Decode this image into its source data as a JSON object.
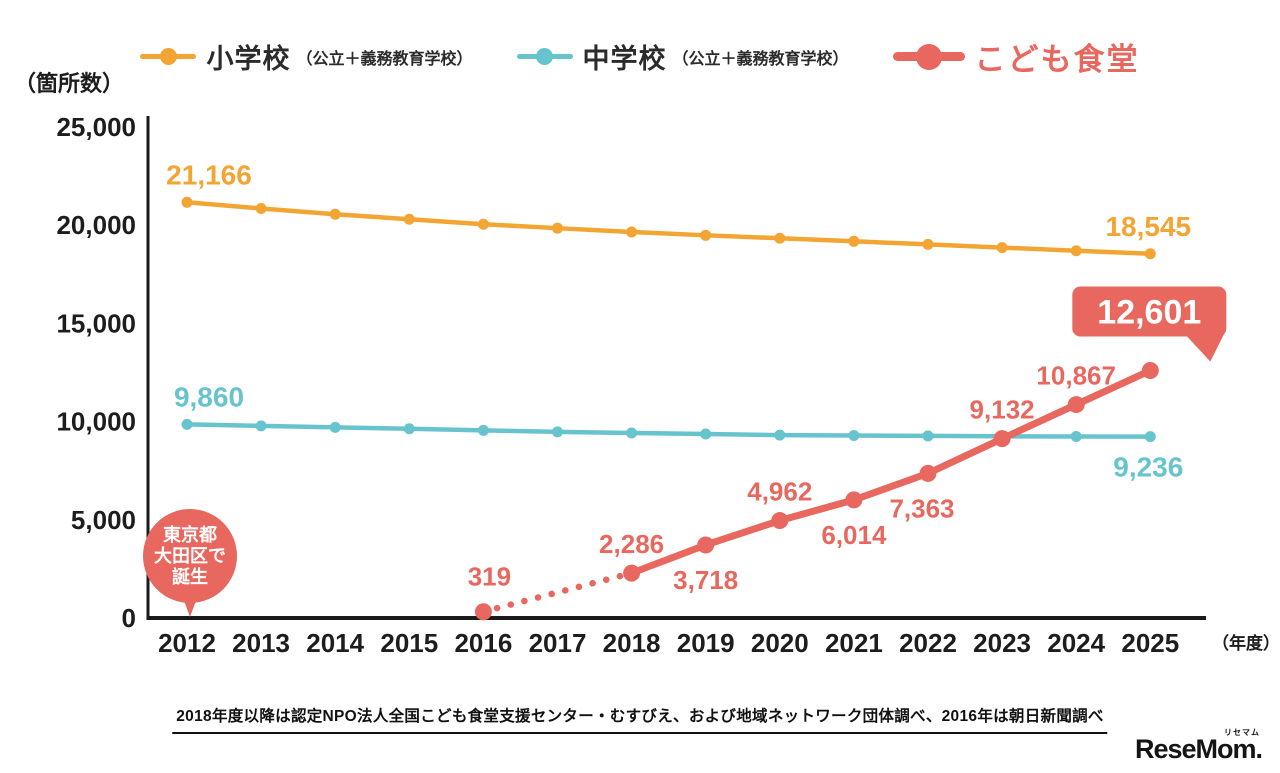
{
  "legend": {
    "items": [
      {
        "label": "小学校",
        "sublabel": "（公立＋義務教育学校）",
        "color": "#F3A533"
      },
      {
        "label": "中学校",
        "sublabel": "（公立＋義務教育学校）",
        "color": "#67C4CE"
      },
      {
        "label": "こども食堂",
        "sublabel": "",
        "color": "#E8685F"
      }
    ]
  },
  "chart_data": {
    "type": "line",
    "title": "",
    "categories": [
      "2012",
      "2013",
      "2014",
      "2015",
      "2016",
      "2017",
      "2018",
      "2019",
      "2020",
      "2021",
      "2022",
      "2023",
      "2024",
      "2025"
    ],
    "x_start": 2012,
    "ylim": [
      0,
      25000
    ],
    "y_tick_step": 5000,
    "grid": false,
    "legend_position": "top",
    "y_unit_label": "（箇所数）",
    "x_unit_label": "（年度）",
    "y_ticks": [
      {
        "value": 25000,
        "label": "25,000"
      },
      {
        "value": 20000,
        "label": "20,000"
      },
      {
        "value": 15000,
        "label": "15,000"
      },
      {
        "value": 10000,
        "label": "10,000"
      },
      {
        "value": 5000,
        "label": "5,000"
      },
      {
        "value": 0,
        "label": "0"
      }
    ],
    "series": [
      {
        "name": "小学校（公立＋義務教育学校）",
        "color": "#F3A533",
        "line_width": 4.5,
        "dot_radius": 5.5,
        "values": [
          21166,
          20852,
          20558,
          20302,
          20049,
          19848,
          19654,
          19485,
          19336,
          19180,
          19022,
          18860,
          18700,
          18545
        ],
        "point_labels": [
          {
            "index": 0,
            "text": "21,166",
            "position": "above",
            "dx": 22
          },
          {
            "index": 13,
            "text": "18,545",
            "position": "above",
            "dx": -2
          }
        ]
      },
      {
        "name": "中学校（公立＋義務教育学校）",
        "color": "#67C4CE",
        "line_width": 4.5,
        "dot_radius": 5.5,
        "values": [
          9860,
          9784,
          9707,
          9637,
          9555,
          9479,
          9421,
          9371,
          9310,
          9294,
          9270,
          9252,
          9244,
          9236
        ],
        "point_labels": [
          {
            "index": 0,
            "text": "9,860",
            "position": "above",
            "dx": 22
          },
          {
            "index": 13,
            "text": "9,236",
            "position": "below",
            "dx": -2
          }
        ]
      },
      {
        "name": "こども食堂",
        "color": "#E8685F",
        "line_width": 7,
        "dot_radius": 8.5,
        "dotted_segment": [
          2016,
          2018
        ],
        "points": [
          {
            "year": 2016,
            "value": 319,
            "label": "319",
            "position": "above",
            "dx": 6,
            "dy": -6
          },
          {
            "year": 2018,
            "value": 2286,
            "label": "2,286",
            "position": "above"
          },
          {
            "year": 2019,
            "value": 3718,
            "label": "3,718",
            "position": "below"
          },
          {
            "year": 2020,
            "value": 4962,
            "label": "4,962",
            "position": "above"
          },
          {
            "year": 2021,
            "value": 6014,
            "label": "6,014",
            "position": "below"
          },
          {
            "year": 2022,
            "value": 7363,
            "label": "7,363",
            "position": "below",
            "dx": -6
          },
          {
            "year": 2023,
            "value": 9132,
            "label": "9,132",
            "position": "above"
          },
          {
            "year": 2024,
            "value": 10867,
            "label": "10,867",
            "position": "above"
          },
          {
            "year": 2025,
            "value": 12601,
            "label": "",
            "position": "callout"
          }
        ]
      }
    ],
    "annotations": {
      "badge": {
        "year": 2012,
        "lines": [
          "東京都",
          "大田区で",
          "誕生"
        ],
        "color": "#E8685F",
        "text_color": "#ffffff"
      },
      "callout": {
        "year": 2025,
        "text": "12,601",
        "color": "#E8685F",
        "text_color": "#ffffff"
      }
    }
  },
  "footnote": "2018年度以降は認定NPO法人全国こども食堂支援センター・むすびえ、および地域ネットワーク団体調べ、2016年は朝日新聞調べ",
  "logo": {
    "text": "ReseMom.",
    "ruby": "リセマム"
  }
}
